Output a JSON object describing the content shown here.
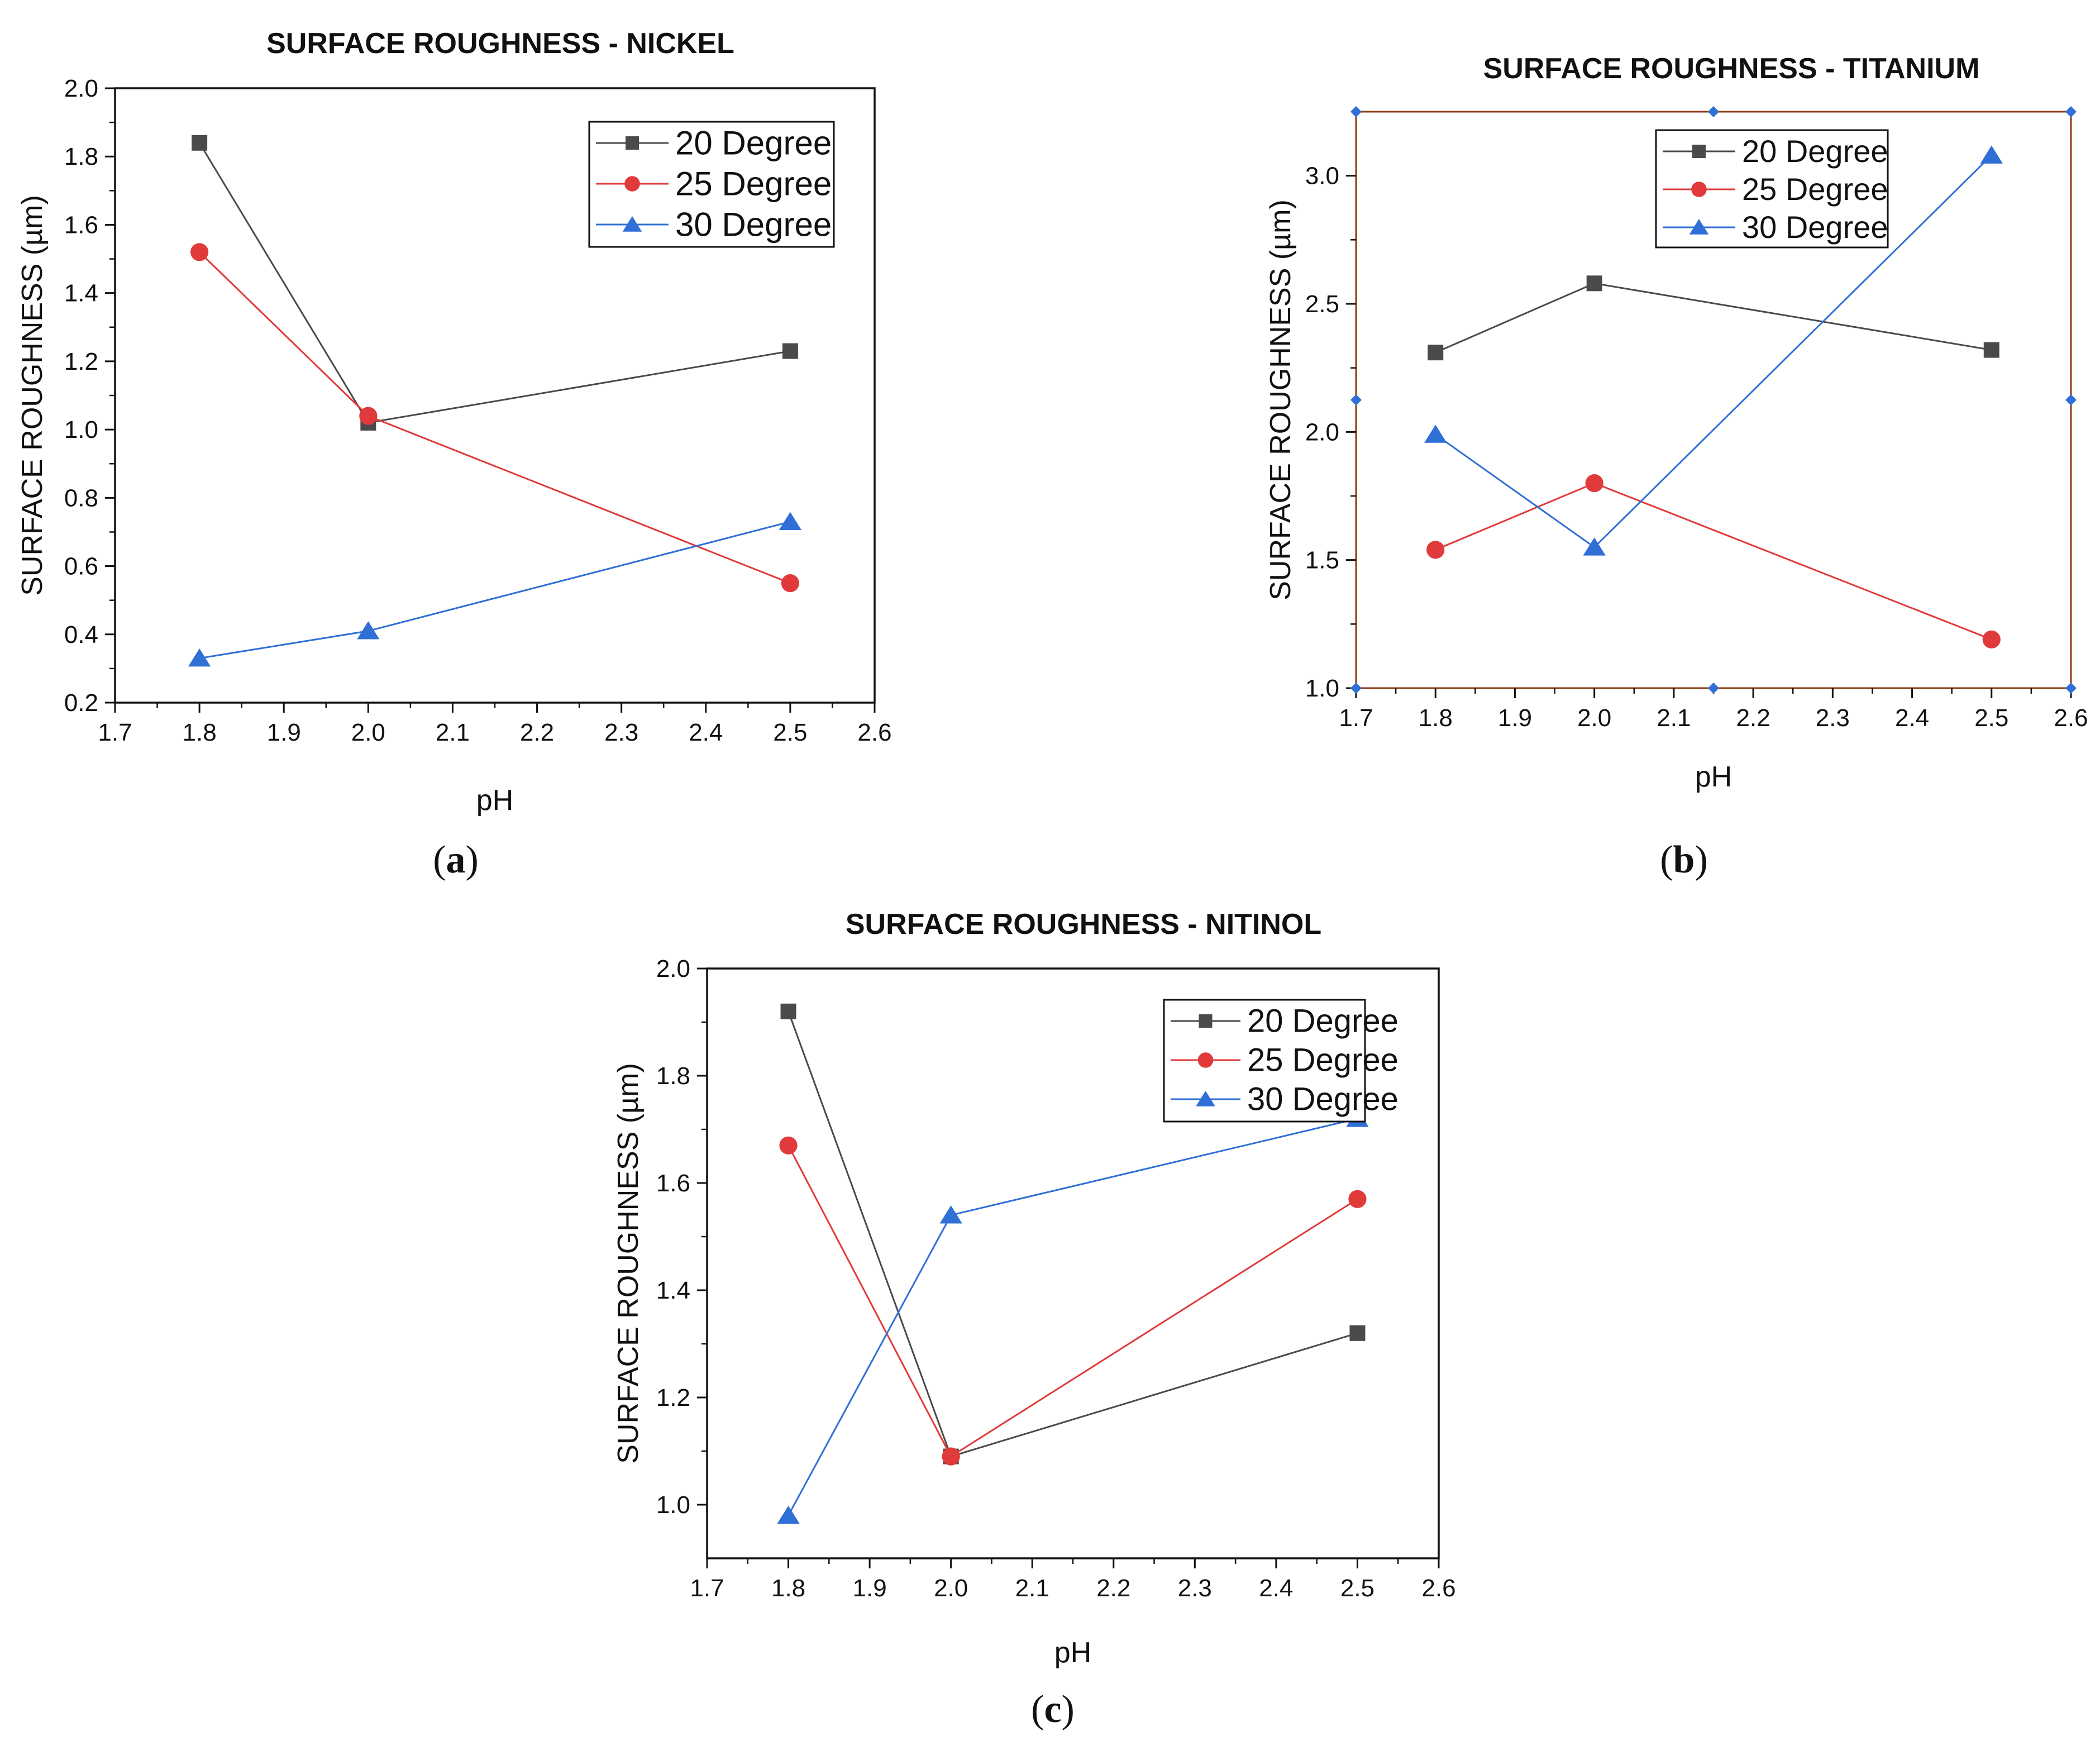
{
  "chart_data": [
    {
      "type": "line",
      "title": "SURFACE ROUGHNESS - NICKEL",
      "xlabel": "pH",
      "ylabel": "SURFACE ROUGHNESS (µm)",
      "caption": "a",
      "xlim": [
        1.7,
        2.6
      ],
      "ylim": [
        0.2,
        2.0
      ],
      "xticks": [
        "1.7",
        "1.8",
        "1.9",
        "2.0",
        "2.1",
        "2.2",
        "2.3",
        "2.4",
        "2.5",
        "2.6"
      ],
      "yticks": [
        "0.2",
        "0.4",
        "0.6",
        "0.8",
        "1.0",
        "1.2",
        "1.4",
        "1.6",
        "1.8",
        "2.0"
      ],
      "legend_position": "top-right",
      "x": [
        1.8,
        2.0,
        2.5
      ],
      "series": [
        {
          "name": "20 Degree",
          "color": "#4a4a4a",
          "marker": "square",
          "values": [
            1.84,
            1.02,
            1.23
          ]
        },
        {
          "name": "25 Degree",
          "color": "#e03a3a",
          "marker": "circle",
          "values": [
            1.52,
            1.04,
            0.55
          ]
        },
        {
          "name": "30 Degree",
          "color": "#2f6fd6",
          "marker": "triangle",
          "values": [
            0.33,
            0.41,
            0.73
          ]
        }
      ]
    },
    {
      "type": "line",
      "title": "SURFACE ROUGHNESS - TITANIUM",
      "xlabel": "pH",
      "ylabel": "SURFACE ROUGHNESS (µm)",
      "caption": "b",
      "xlim": [
        1.7,
        2.6
      ],
      "ylim": [
        1.0,
        3.25
      ],
      "xticks": [
        "1.7",
        "1.8",
        "1.9",
        "2.0",
        "2.1",
        "2.2",
        "2.3",
        "2.4",
        "2.5",
        "2.6"
      ],
      "yticks": [
        "1.0",
        "1.5",
        "2.0",
        "2.5",
        "3.0"
      ],
      "legend_position": "top-right",
      "x": [
        1.8,
        2.0,
        2.5
      ],
      "series": [
        {
          "name": "20 Degree",
          "color": "#4a4a4a",
          "marker": "square",
          "values": [
            2.31,
            2.58,
            2.32
          ]
        },
        {
          "name": "25 Degree",
          "color": "#e03a3a",
          "marker": "circle",
          "values": [
            1.54,
            1.8,
            1.19
          ]
        },
        {
          "name": "30 Degree",
          "color": "#2f6fd6",
          "marker": "triangle",
          "values": [
            1.99,
            1.55,
            3.08
          ]
        }
      ]
    },
    {
      "type": "line",
      "title": "SURFACE ROUGHNESS - NITINOL",
      "xlabel": "pH",
      "ylabel": "SURFACE ROUGHNESS (µm)",
      "caption": "c",
      "xlim": [
        1.7,
        2.6
      ],
      "ylim": [
        0.9,
        2.0
      ],
      "xticks": [
        "1.7",
        "1.8",
        "1.9",
        "2.0",
        "2.1",
        "2.2",
        "2.3",
        "2.4",
        "2.5",
        "2.6"
      ],
      "yticks": [
        "1.0",
        "1.2",
        "1.4",
        "1.6",
        "1.8",
        "2.0"
      ],
      "legend_position": "top-right",
      "x": [
        1.8,
        2.0,
        2.5
      ],
      "series": [
        {
          "name": "20 Degree",
          "color": "#4a4a4a",
          "marker": "square",
          "values": [
            1.92,
            1.09,
            1.32
          ]
        },
        {
          "name": "25 Degree",
          "color": "#e03a3a",
          "marker": "circle",
          "values": [
            1.67,
            1.09,
            1.57
          ]
        },
        {
          "name": "30 Degree",
          "color": "#2f6fd6",
          "marker": "triangle",
          "values": [
            0.98,
            1.54,
            1.72
          ]
        }
      ]
    }
  ]
}
